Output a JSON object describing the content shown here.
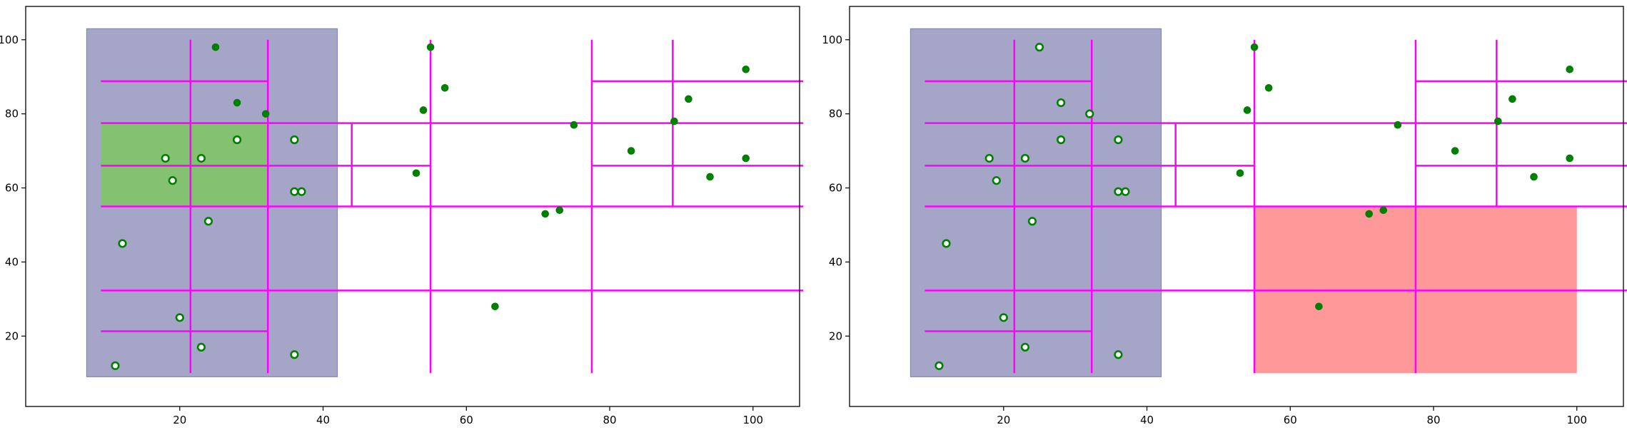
{
  "chart_data": [
    {
      "type": "scatter",
      "xlim": [
        -1.5,
        106.5
      ],
      "ylim": [
        1,
        109
      ],
      "xticks": [
        20,
        40,
        60,
        80,
        100
      ],
      "yticks": [
        20,
        40,
        60,
        80,
        100
      ],
      "xtick_labels": [
        "20",
        "40",
        "60",
        "80",
        "100"
      ],
      "ytick_labels": [
        "20",
        "40",
        "60",
        "80",
        "100"
      ],
      "grid": false,
      "points": [
        [
          25,
          98
        ],
        [
          55,
          98
        ],
        [
          57,
          87
        ],
        [
          54,
          81
        ],
        [
          28,
          83
        ],
        [
          32,
          80
        ],
        [
          28,
          73
        ],
        [
          36,
          73
        ],
        [
          75,
          77
        ],
        [
          99,
          92
        ],
        [
          91,
          84
        ],
        [
          89,
          78
        ],
        [
          99,
          68
        ],
        [
          83,
          70
        ],
        [
          94,
          63
        ],
        [
          18,
          68
        ],
        [
          23,
          68
        ],
        [
          19,
          62
        ],
        [
          53,
          64
        ],
        [
          36,
          59
        ],
        [
          37,
          59
        ],
        [
          24,
          51
        ],
        [
          71,
          53
        ],
        [
          73,
          54
        ],
        [
          12,
          45
        ],
        [
          64,
          28
        ],
        [
          20,
          25
        ],
        [
          23,
          17
        ],
        [
          36,
          15
        ],
        [
          11,
          12
        ]
      ],
      "highlighted_points_in_query": [
        [
          28,
          73
        ],
        [
          36,
          73
        ],
        [
          18,
          68
        ],
        [
          23,
          68
        ],
        [
          19,
          62
        ],
        [
          36,
          59
        ],
        [
          37,
          59
        ],
        [
          24,
          51
        ],
        [
          12,
          45
        ],
        [
          20,
          25
        ],
        [
          23,
          17
        ],
        [
          36,
          15
        ],
        [
          11,
          12
        ]
      ],
      "regions": [
        {
          "kind": "query-rect",
          "x": [
            7,
            42
          ],
          "y": [
            9,
            103
          ],
          "color": "#4b4b8f"
        },
        {
          "kind": "highlight-cell",
          "x": [
            9,
            32.3
          ],
          "y": [
            55,
            77.5
          ],
          "color": "#7cc85a"
        }
      ],
      "kd_splits": {
        "vertical": [
          [
            21.5,
            10,
            100
          ],
          [
            32.3,
            10,
            100
          ],
          [
            55,
            10,
            100
          ],
          [
            77.5,
            10,
            100
          ],
          [
            88.8,
            55,
            100
          ],
          [
            44,
            55,
            77.5
          ]
        ],
        "horizontal": [
          [
            9,
            107,
            77.5
          ],
          [
            9,
            107,
            55
          ],
          [
            9,
            107,
            32.3
          ],
          [
            9,
            32.3,
            88.8
          ],
          [
            9,
            55,
            66
          ],
          [
            9,
            32.3,
            21.3
          ],
          [
            77.5,
            107,
            88.8
          ],
          [
            77.5,
            107,
            66
          ]
        ]
      },
      "line_color": "#ff00ff",
      "point_color": "#008000"
    },
    {
      "type": "scatter",
      "xlim": [
        -1.5,
        106.5
      ],
      "ylim": [
        1,
        109
      ],
      "xticks": [
        20,
        40,
        60,
        80,
        100
      ],
      "yticks": [
        20,
        40,
        60,
        80,
        100
      ],
      "xtick_labels": [
        "20",
        "40",
        "60",
        "80",
        "100"
      ],
      "ytick_labels": [
        "20",
        "40",
        "60",
        "80",
        "100"
      ],
      "grid": false,
      "points": [
        [
          25,
          98
        ],
        [
          55,
          98
        ],
        [
          57,
          87
        ],
        [
          54,
          81
        ],
        [
          28,
          83
        ],
        [
          32,
          80
        ],
        [
          28,
          73
        ],
        [
          36,
          73
        ],
        [
          75,
          77
        ],
        [
          99,
          92
        ],
        [
          91,
          84
        ],
        [
          89,
          78
        ],
        [
          99,
          68
        ],
        [
          83,
          70
        ],
        [
          94,
          63
        ],
        [
          18,
          68
        ],
        [
          23,
          68
        ],
        [
          19,
          62
        ],
        [
          53,
          64
        ],
        [
          36,
          59
        ],
        [
          37,
          59
        ],
        [
          24,
          51
        ],
        [
          71,
          53
        ],
        [
          73,
          54
        ],
        [
          12,
          45
        ],
        [
          64,
          28
        ],
        [
          20,
          25
        ],
        [
          23,
          17
        ],
        [
          36,
          15
        ],
        [
          11,
          12
        ]
      ],
      "highlighted_points_in_query": [
        [
          25,
          98
        ],
        [
          28,
          83
        ],
        [
          32,
          80
        ],
        [
          28,
          73
        ],
        [
          36,
          73
        ],
        [
          18,
          68
        ],
        [
          23,
          68
        ],
        [
          19,
          62
        ],
        [
          36,
          59
        ],
        [
          37,
          59
        ],
        [
          24,
          51
        ],
        [
          12,
          45
        ],
        [
          20,
          25
        ],
        [
          23,
          17
        ],
        [
          36,
          15
        ],
        [
          11,
          12
        ]
      ],
      "regions": [
        {
          "kind": "query-rect",
          "x": [
            7,
            42
          ],
          "y": [
            9,
            103
          ],
          "color": "#4b4b8f"
        },
        {
          "kind": "highlight-cell",
          "x": [
            55,
            100
          ],
          "y": [
            10,
            55
          ],
          "color": "#ff7f7f"
        }
      ],
      "kd_splits": {
        "vertical": [
          [
            21.5,
            10,
            100
          ],
          [
            32.3,
            10,
            100
          ],
          [
            55,
            10,
            100
          ],
          [
            77.5,
            10,
            100
          ],
          [
            88.8,
            55,
            100
          ],
          [
            44,
            55,
            77.5
          ]
        ],
        "horizontal": [
          [
            9,
            107,
            77.5
          ],
          [
            9,
            107,
            55
          ],
          [
            9,
            107,
            32.3
          ],
          [
            9,
            32.3,
            88.8
          ],
          [
            9,
            55,
            66
          ],
          [
            9,
            32.3,
            21.3
          ],
          [
            77.5,
            107,
            88.8
          ],
          [
            77.5,
            107,
            66
          ]
        ]
      },
      "line_color": "#ff00ff",
      "point_color": "#008000"
    }
  ]
}
